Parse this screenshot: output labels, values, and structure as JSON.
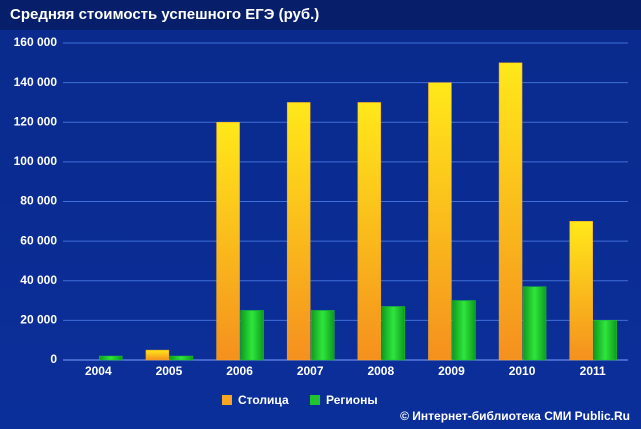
{
  "chart_data": {
    "type": "bar",
    "title": "Средняя стоимость успешного ЕГЭ (руб.)",
    "categories": [
      "2004",
      "2005",
      "2006",
      "2007",
      "2008",
      "2009",
      "2010",
      "2011"
    ],
    "series": [
      {
        "name": "Столица",
        "color": "#f5a623",
        "values": [
          0,
          5000,
          120000,
          130000,
          130000,
          140000,
          150000,
          70000
        ]
      },
      {
        "name": "Регионы",
        "color": "#1fc62e",
        "values": [
          2000,
          2000,
          25000,
          25000,
          27000,
          30000,
          37000,
          20000
        ]
      }
    ],
    "ylim": [
      0,
      160000
    ],
    "yticks": [
      0,
      {
        "value": 20000,
        "label": "20 000"
      },
      {
        "value": 40000,
        "label": "40 000"
      },
      {
        "value": 60000,
        "label": "60 000"
      },
      {
        "value": 80000,
        "label": "80 000"
      },
      {
        "value": 100000,
        "label": "100 000"
      },
      {
        "value": 120000,
        "label": "120 000"
      },
      {
        "value": 140000,
        "label": "140 000"
      },
      {
        "value": 160000,
        "label": "160 000"
      }
    ],
    "grid": true,
    "legend": "bottom",
    "source": "© Интернет-библиотека СМИ Public.Ru"
  }
}
